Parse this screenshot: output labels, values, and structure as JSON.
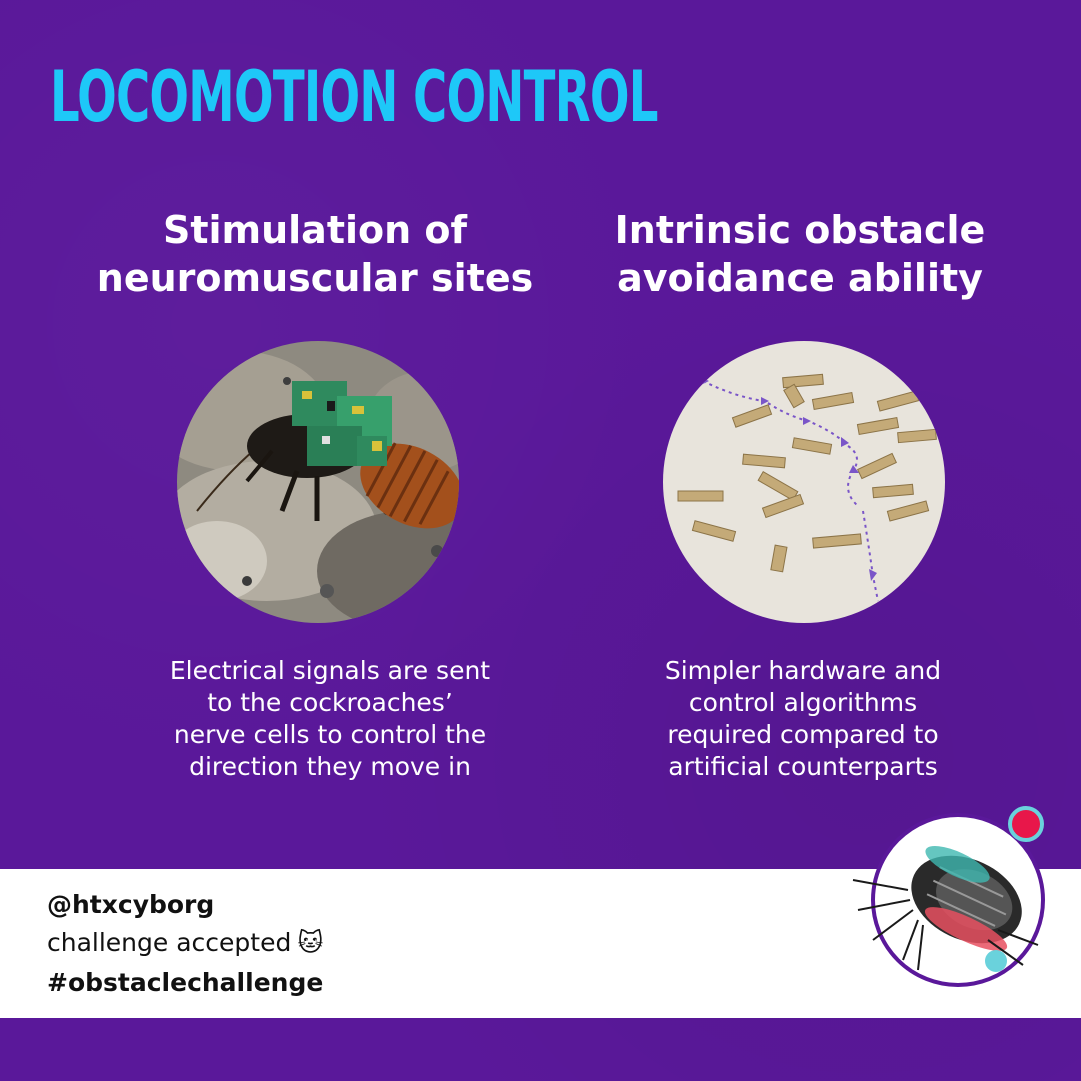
{
  "title": "LOCOMOTION CONTROL",
  "left": {
    "heading_line1": "Stimulation of",
    "heading_line2": "neuromuscular sites",
    "desc_line1": "Electrical signals are sent",
    "desc_line2": "to the cockroaches’",
    "desc_line3": "nerve cells to control the",
    "desc_line4": "direction they move in",
    "image_icon": "cockroach-with-circuit-backpack"
  },
  "right": {
    "heading_line1": "Intrinsic obstacle",
    "heading_line2": "avoidance ability",
    "desc_line1": "Simpler hardware and",
    "desc_line2": "control algorithms",
    "desc_line3": "required compared to",
    "desc_line4": "artificial counterparts",
    "image_icon": "obstacle-field-with-path"
  },
  "footer": {
    "handle": "@htxcyborg",
    "caption": "challenge accepted",
    "emoji": "🐱",
    "hashtag": "#obstaclechallenge"
  },
  "colors": {
    "background": "#5a189a",
    "title": "#1ec8f8",
    "text": "#ffffff",
    "accent_red": "#e8174a",
    "accent_cyan": "#6ad2dc"
  }
}
